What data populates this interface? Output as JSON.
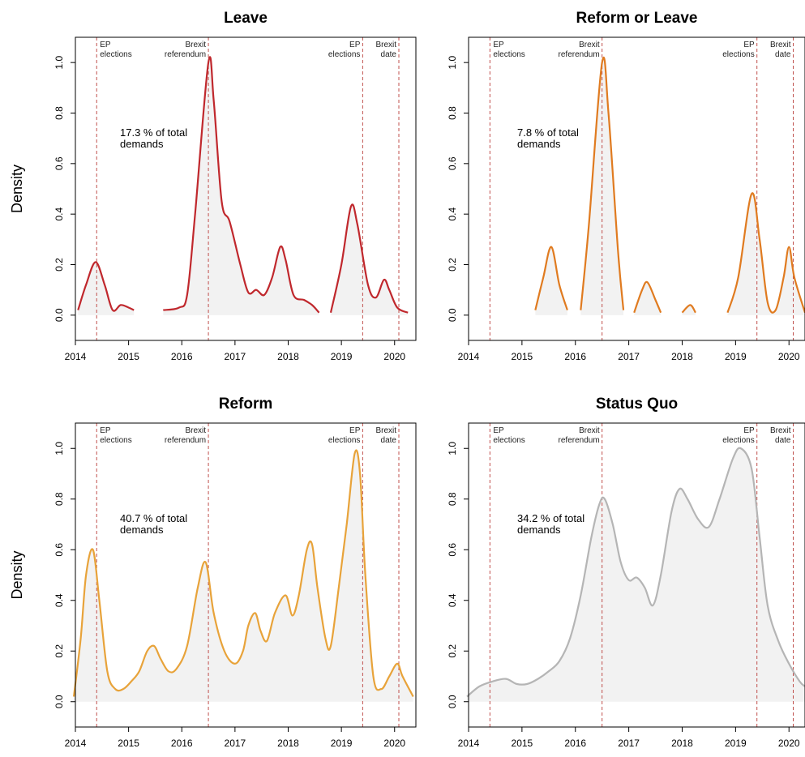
{
  "chart_data": [
    {
      "type": "area",
      "title": "Leave",
      "ylabel": "Density",
      "xlim": [
        2014,
        2020.4
      ],
      "ylim": [
        -0.1,
        1.1
      ],
      "x_ticks": [
        2014,
        2015,
        2016,
        2017,
        2018,
        2019,
        2020
      ],
      "y_ticks": [
        0.0,
        0.2,
        0.4,
        0.6,
        0.8,
        1.0
      ],
      "annotation": "17.3 % of total demands",
      "color": "#c0282d",
      "events": [
        {
          "x": 2014.4,
          "label": [
            "EP",
            "elections"
          ]
        },
        {
          "x": 2016.5,
          "label": [
            "Brexit",
            "referendum"
          ]
        },
        {
          "x": 2019.4,
          "label": [
            "EP",
            "elections"
          ]
        },
        {
          "x": 2020.08,
          "label": [
            "Brexit",
            "date"
          ]
        }
      ],
      "segments": [
        [
          [
            2014.05,
            0.02
          ],
          [
            2014.2,
            0.12
          ],
          [
            2014.38,
            0.21
          ],
          [
            2014.55,
            0.12
          ],
          [
            2014.7,
            0.02
          ],
          [
            2014.85,
            0.04
          ],
          [
            2015.0,
            0.03
          ],
          [
            2015.1,
            0.02
          ]
        ],
        [
          [
            2015.65,
            0.02
          ],
          [
            2015.95,
            0.03
          ],
          [
            2016.1,
            0.08
          ],
          [
            2016.25,
            0.4
          ],
          [
            2016.5,
            1.0
          ],
          [
            2016.6,
            0.85
          ],
          [
            2016.75,
            0.45
          ],
          [
            2016.9,
            0.37
          ],
          [
            2017.1,
            0.2
          ],
          [
            2017.25,
            0.09
          ],
          [
            2017.4,
            0.1
          ],
          [
            2017.55,
            0.08
          ],
          [
            2017.7,
            0.15
          ],
          [
            2017.85,
            0.27
          ],
          [
            2017.95,
            0.22
          ],
          [
            2018.1,
            0.08
          ],
          [
            2018.3,
            0.06
          ],
          [
            2018.45,
            0.04
          ],
          [
            2018.58,
            0.01
          ]
        ],
        [
          [
            2018.8,
            0.01
          ],
          [
            2019.0,
            0.2
          ],
          [
            2019.18,
            0.43
          ],
          [
            2019.3,
            0.36
          ],
          [
            2019.5,
            0.12
          ],
          [
            2019.65,
            0.07
          ],
          [
            2019.8,
            0.14
          ],
          [
            2019.9,
            0.1
          ],
          [
            2020.05,
            0.03
          ],
          [
            2020.25,
            0.01
          ]
        ]
      ]
    },
    {
      "type": "area",
      "title": "Reform or Leave",
      "ylabel": "",
      "xlim": [
        2014,
        2020.3
      ],
      "ylim": [
        -0.1,
        1.1
      ],
      "x_ticks": [
        2014,
        2015,
        2016,
        2017,
        2018,
        2019,
        2020
      ],
      "y_ticks": [
        0.0,
        0.2,
        0.4,
        0.6,
        0.8,
        1.0
      ],
      "annotation": "7.8 % of total demands",
      "color": "#e07b20",
      "events": [
        {
          "x": 2014.4,
          "label": [
            "EP",
            "elections"
          ]
        },
        {
          "x": 2016.5,
          "label": [
            "Brexit",
            "referendum"
          ]
        },
        {
          "x": 2019.4,
          "label": [
            "EP",
            "elections"
          ]
        },
        {
          "x": 2020.08,
          "label": [
            "Brexit",
            "date"
          ]
        }
      ],
      "segments": [
        [
          [
            2015.25,
            0.02
          ],
          [
            2015.4,
            0.15
          ],
          [
            2015.55,
            0.27
          ],
          [
            2015.7,
            0.12
          ],
          [
            2015.85,
            0.02
          ]
        ],
        [
          [
            2016.1,
            0.02
          ],
          [
            2016.25,
            0.35
          ],
          [
            2016.5,
            1.0
          ],
          [
            2016.62,
            0.8
          ],
          [
            2016.8,
            0.25
          ],
          [
            2016.9,
            0.02
          ]
        ],
        [
          [
            2017.1,
            0.01
          ],
          [
            2017.25,
            0.1
          ],
          [
            2017.35,
            0.13
          ],
          [
            2017.5,
            0.06
          ],
          [
            2017.6,
            0.01
          ]
        ],
        [
          [
            2018.0,
            0.01
          ],
          [
            2018.15,
            0.04
          ],
          [
            2018.25,
            0.01
          ]
        ],
        [
          [
            2018.85,
            0.01
          ],
          [
            2019.05,
            0.15
          ],
          [
            2019.3,
            0.48
          ],
          [
            2019.45,
            0.3
          ],
          [
            2019.6,
            0.05
          ],
          [
            2019.75,
            0.02
          ],
          [
            2019.9,
            0.15
          ],
          [
            2020.0,
            0.27
          ],
          [
            2020.1,
            0.15
          ],
          [
            2020.3,
            0.01
          ]
        ]
      ]
    },
    {
      "type": "area",
      "title": "Reform",
      "ylabel": "Density",
      "xlim": [
        2014,
        2020.4
      ],
      "ylim": [
        -0.1,
        1.1
      ],
      "x_ticks": [
        2014,
        2015,
        2016,
        2017,
        2018,
        2019,
        2020
      ],
      "y_ticks": [
        0.0,
        0.2,
        0.4,
        0.6,
        0.8,
        1.0
      ],
      "annotation": "40.7 % of total demands",
      "color": "#e8a33a",
      "events": [
        {
          "x": 2014.4,
          "label": [
            "EP",
            "elections"
          ]
        },
        {
          "x": 2016.5,
          "label": [
            "Brexit",
            "referendum"
          ]
        },
        {
          "x": 2019.4,
          "label": [
            "EP",
            "elections"
          ]
        },
        {
          "x": 2020.08,
          "label": [
            "Brexit",
            "date"
          ]
        }
      ],
      "segments": [
        [
          [
            2013.97,
            0.02
          ],
          [
            2014.1,
            0.25
          ],
          [
            2014.2,
            0.5
          ],
          [
            2014.33,
            0.6
          ],
          [
            2014.45,
            0.4
          ],
          [
            2014.6,
            0.12
          ],
          [
            2014.75,
            0.05
          ],
          [
            2014.9,
            0.05
          ],
          [
            2015.05,
            0.08
          ],
          [
            2015.2,
            0.12
          ],
          [
            2015.35,
            0.2
          ],
          [
            2015.48,
            0.22
          ],
          [
            2015.6,
            0.17
          ],
          [
            2015.75,
            0.12
          ],
          [
            2015.9,
            0.13
          ],
          [
            2016.1,
            0.22
          ],
          [
            2016.3,
            0.45
          ],
          [
            2016.45,
            0.55
          ],
          [
            2016.6,
            0.35
          ],
          [
            2016.8,
            0.2
          ],
          [
            2017.0,
            0.15
          ],
          [
            2017.15,
            0.2
          ],
          [
            2017.25,
            0.3
          ],
          [
            2017.38,
            0.35
          ],
          [
            2017.48,
            0.28
          ],
          [
            2017.6,
            0.24
          ],
          [
            2017.75,
            0.35
          ],
          [
            2017.95,
            0.42
          ],
          [
            2018.08,
            0.34
          ],
          [
            2018.2,
            0.42
          ],
          [
            2018.35,
            0.6
          ],
          [
            2018.45,
            0.62
          ],
          [
            2018.55,
            0.45
          ],
          [
            2018.7,
            0.25
          ],
          [
            2018.8,
            0.22
          ],
          [
            2018.95,
            0.45
          ],
          [
            2019.1,
            0.7
          ],
          [
            2019.25,
            0.98
          ],
          [
            2019.35,
            0.9
          ],
          [
            2019.45,
            0.5
          ],
          [
            2019.6,
            0.1
          ],
          [
            2019.75,
            0.05
          ],
          [
            2019.9,
            0.1
          ],
          [
            2020.05,
            0.15
          ],
          [
            2020.15,
            0.1
          ],
          [
            2020.35,
            0.02
          ]
        ]
      ]
    },
    {
      "type": "area",
      "title": "Status Quo",
      "ylabel": "",
      "xlim": [
        2014,
        2020.3
      ],
      "ylim": [
        -0.1,
        1.1
      ],
      "x_ticks": [
        2014,
        2015,
        2016,
        2017,
        2018,
        2019,
        2020
      ],
      "y_ticks": [
        0.0,
        0.2,
        0.4,
        0.6,
        0.8,
        1.0
      ],
      "annotation": "34.2 % of total demands",
      "color": "#b5b5b5",
      "events": [
        {
          "x": 2014.4,
          "label": [
            "EP",
            "elections"
          ]
        },
        {
          "x": 2016.5,
          "label": [
            "Brexit",
            "referendum"
          ]
        },
        {
          "x": 2019.4,
          "label": [
            "EP",
            "elections"
          ]
        },
        {
          "x": 2020.08,
          "label": [
            "Brexit",
            "date"
          ]
        }
      ],
      "segments": [
        [
          [
            2013.97,
            0.02
          ],
          [
            2014.2,
            0.06
          ],
          [
            2014.45,
            0.08
          ],
          [
            2014.7,
            0.09
          ],
          [
            2014.9,
            0.07
          ],
          [
            2015.1,
            0.07
          ],
          [
            2015.3,
            0.09
          ],
          [
            2015.5,
            0.12
          ],
          [
            2015.7,
            0.16
          ],
          [
            2015.9,
            0.25
          ],
          [
            2016.1,
            0.42
          ],
          [
            2016.3,
            0.65
          ],
          [
            2016.45,
            0.78
          ],
          [
            2016.55,
            0.8
          ],
          [
            2016.7,
            0.7
          ],
          [
            2016.85,
            0.55
          ],
          [
            2017.0,
            0.48
          ],
          [
            2017.15,
            0.49
          ],
          [
            2017.3,
            0.45
          ],
          [
            2017.45,
            0.38
          ],
          [
            2017.6,
            0.5
          ],
          [
            2017.8,
            0.75
          ],
          [
            2017.95,
            0.84
          ],
          [
            2018.1,
            0.8
          ],
          [
            2018.3,
            0.72
          ],
          [
            2018.5,
            0.69
          ],
          [
            2018.7,
            0.8
          ],
          [
            2018.95,
            0.96
          ],
          [
            2019.1,
            1.0
          ],
          [
            2019.3,
            0.92
          ],
          [
            2019.45,
            0.65
          ],
          [
            2019.6,
            0.38
          ],
          [
            2019.8,
            0.24
          ],
          [
            2020.0,
            0.15
          ],
          [
            2020.2,
            0.08
          ],
          [
            2020.3,
            0.06
          ]
        ]
      ]
    }
  ]
}
